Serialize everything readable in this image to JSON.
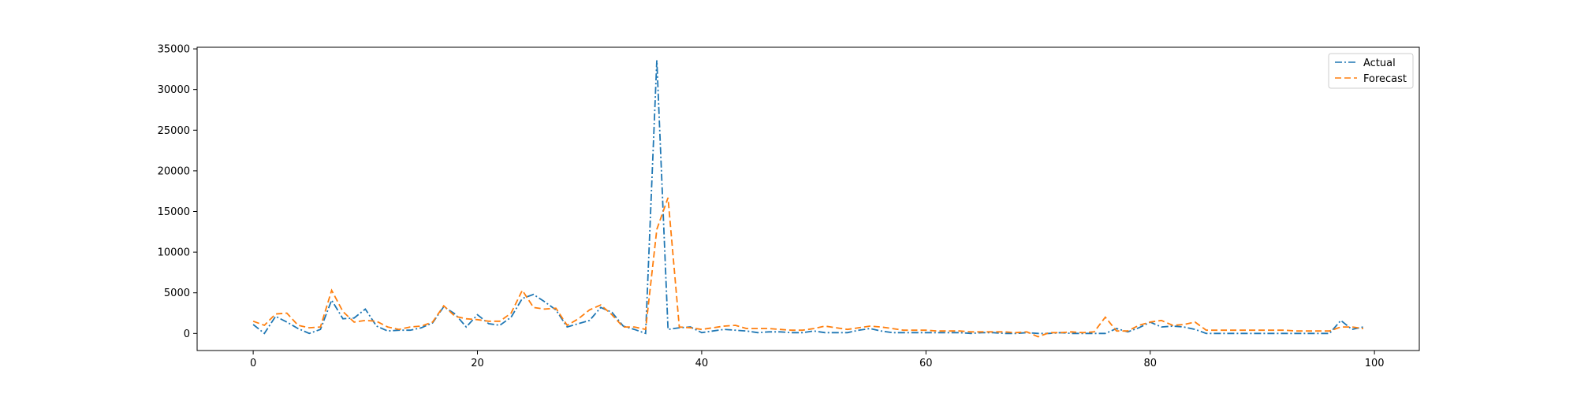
{
  "colors": {
    "actual": "#1f77b4",
    "forecast": "#ff7f0e",
    "axis": "#000000",
    "background": "#ffffff"
  },
  "chart_data": {
    "type": "line",
    "title": "",
    "xlabel": "",
    "ylabel": "",
    "xlim": [
      -5,
      104
    ],
    "ylim": [
      -2100,
      35200
    ],
    "xticks": [
      0,
      20,
      40,
      60,
      80,
      100
    ],
    "yticks": [
      0,
      5000,
      10000,
      15000,
      20000,
      25000,
      30000,
      35000
    ],
    "grid": false,
    "legend": {
      "placement": "top-right",
      "entries": [
        "Actual",
        "Forecast"
      ]
    },
    "series": [
      {
        "name": "Actual",
        "line_style": "dashdot",
        "x": [
          0,
          1,
          2,
          3,
          4,
          5,
          6,
          7,
          8,
          9,
          10,
          11,
          12,
          13,
          14,
          15,
          16,
          17,
          18,
          19,
          20,
          21,
          22,
          23,
          24,
          25,
          26,
          27,
          28,
          29,
          30,
          31,
          32,
          33,
          34,
          35,
          36,
          37,
          38,
          39,
          40,
          41,
          42,
          43,
          44,
          45,
          46,
          47,
          48,
          49,
          50,
          51,
          52,
          53,
          54,
          55,
          56,
          57,
          58,
          59,
          60,
          61,
          62,
          63,
          64,
          65,
          66,
          67,
          68,
          69,
          70,
          71,
          72,
          73,
          74,
          75,
          76,
          77,
          78,
          79,
          80,
          81,
          82,
          83,
          84,
          85,
          86,
          87,
          88,
          89,
          90,
          91,
          92,
          93,
          94,
          95,
          96,
          97,
          98,
          99
        ],
        "values": [
          1100,
          0,
          2100,
          1400,
          600,
          0,
          500,
          4100,
          1800,
          1900,
          3000,
          900,
          300,
          400,
          400,
          700,
          1300,
          3300,
          2400,
          800,
          2300,
          1200,
          1000,
          2000,
          4300,
          4800,
          3900,
          2900,
          800,
          1200,
          1600,
          3200,
          2600,
          900,
          500,
          0,
          33600,
          500,
          700,
          800,
          100,
          300,
          500,
          400,
          300,
          100,
          200,
          200,
          100,
          100,
          300,
          100,
          100,
          100,
          400,
          600,
          300,
          100,
          100,
          100,
          100,
          100,
          100,
          100,
          0,
          100,
          100,
          0,
          0,
          100,
          0,
          0,
          100,
          0,
          0,
          0,
          0,
          600,
          200,
          700,
          1400,
          800,
          900,
          800,
          500,
          0,
          0,
          0,
          0,
          0,
          0,
          0,
          0,
          0,
          0,
          0,
          0,
          1600,
          500,
          800
        ]
      },
      {
        "name": "Forecast",
        "line_style": "dashed",
        "x": [
          0,
          1,
          2,
          3,
          4,
          5,
          6,
          7,
          8,
          9,
          10,
          11,
          12,
          13,
          14,
          15,
          16,
          17,
          18,
          19,
          20,
          21,
          22,
          23,
          24,
          25,
          26,
          27,
          28,
          29,
          30,
          31,
          32,
          33,
          34,
          35,
          36,
          37,
          38,
          39,
          40,
          41,
          42,
          43,
          44,
          45,
          46,
          47,
          48,
          49,
          50,
          51,
          52,
          53,
          54,
          55,
          56,
          57,
          58,
          59,
          60,
          61,
          62,
          63,
          64,
          65,
          66,
          67,
          68,
          69,
          70,
          71,
          72,
          73,
          74,
          75,
          76,
          77,
          78,
          79,
          80,
          81,
          82,
          83,
          84,
          85,
          86,
          87,
          88,
          89,
          90,
          91,
          92,
          93,
          94,
          95,
          96,
          97,
          98,
          99
        ],
        "values": [
          1500,
          1000,
          2400,
          2500,
          1000,
          700,
          800,
          5300,
          2700,
          1400,
          1600,
          1500,
          800,
          500,
          800,
          900,
          1400,
          3400,
          2100,
          1800,
          1700,
          1500,
          1500,
          2500,
          5300,
          3200,
          3000,
          3100,
          1000,
          1800,
          2900,
          3500,
          2300,
          800,
          800,
          500,
          12800,
          16700,
          800,
          700,
          500,
          700,
          900,
          1000,
          600,
          600,
          600,
          500,
          400,
          400,
          600,
          900,
          700,
          500,
          700,
          900,
          800,
          600,
          400,
          400,
          400,
          300,
          300,
          300,
          200,
          200,
          200,
          200,
          100,
          200,
          -400,
          100,
          100,
          200,
          100,
          200,
          2000,
          300,
          300,
          1000,
          1400,
          1600,
          1000,
          1100,
          1400,
          400,
          400,
          400,
          400,
          400,
          400,
          400,
          400,
          300,
          300,
          300,
          300,
          800,
          800,
          600
        ]
      }
    ]
  }
}
